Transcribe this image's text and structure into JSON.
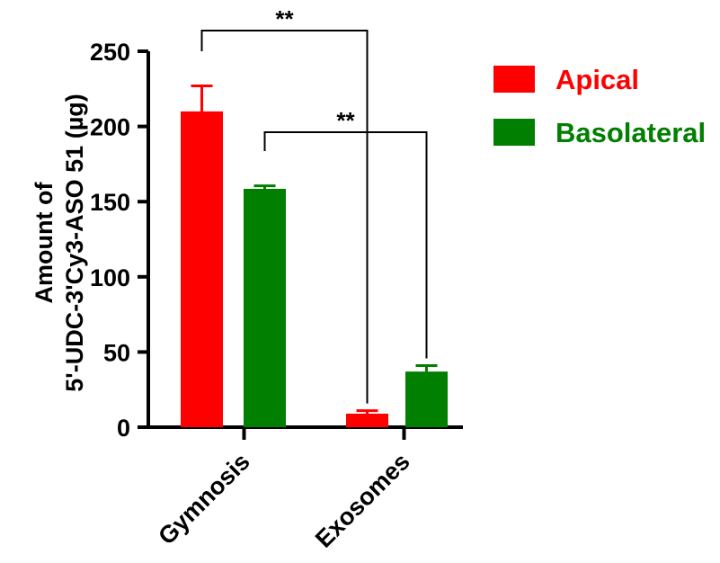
{
  "chart_data": {
    "type": "bar",
    "categories": [
      "Gymnosis",
      "Exosomes"
    ],
    "series": [
      {
        "name": "Apical",
        "color": "#ff0000",
        "values": [
          210,
          9
        ],
        "errors": [
          17,
          2
        ]
      },
      {
        "name": "Basolateral",
        "color": "#007f00",
        "values": [
          158.5,
          37
        ],
        "errors": [
          2,
          4
        ]
      }
    ],
    "ylabel_lines": [
      "Amount of",
      "5'-UDC-3'Cy3-ASO 51 (µg)"
    ],
    "ylim": [
      0,
      250
    ],
    "yticks": [
      0,
      50,
      100,
      150,
      200,
      250
    ],
    "grid": false,
    "legend_position": "top-right",
    "significance": [
      {
        "label": "**",
        "from": {
          "category": 0,
          "series": 0
        },
        "to": {
          "category": 1,
          "series": 0
        }
      },
      {
        "label": "**",
        "from": {
          "category": 0,
          "series": 1
        },
        "to": {
          "category": 1,
          "series": 1
        }
      }
    ]
  }
}
